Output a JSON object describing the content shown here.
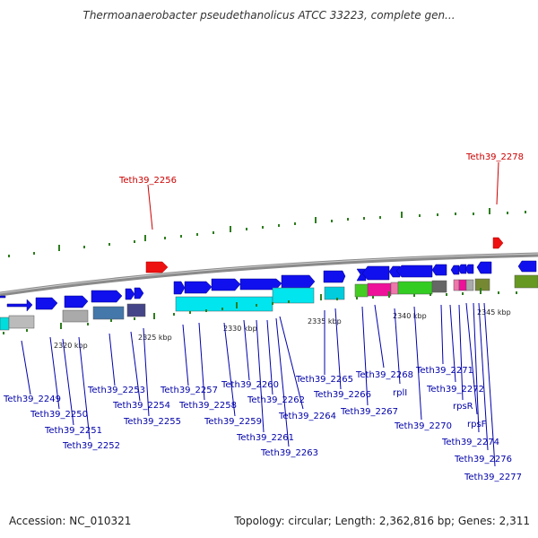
{
  "title": "Thermoanaerobacter pseudethanolicus ATCC 33223, complete gen...",
  "footer": {
    "accession_label": "Accession: NC_010321",
    "summary": "Topology: circular; Length: 2,362,816 bp; Genes: 2,311"
  },
  "colors": {
    "forward_gene": "#1010ee",
    "highlight_gene": "#ee1111",
    "backbone": "#8a8a8a",
    "tick": "#2e7d1e",
    "label_line": "#0000aa",
    "highlight_label": "#cc0000"
  },
  "kbp_labels": [
    "2320 kbp",
    "2325 kbp",
    "2330 kbp",
    "2335 kbp",
    "2340 kbp",
    "2345 kbp"
  ],
  "highlight_labels": [
    "Teth39_2256",
    "Teth39_2278"
  ],
  "gene_labels": [
    "Teth39_2249",
    "Teth39_2250",
    "Teth39_2251",
    "Teth39_2252",
    "Teth39_2253",
    "Teth39_2254",
    "Teth39_2255",
    "Teth39_2257",
    "Teth39_2258",
    "Teth39_2259",
    "Teth39_2260",
    "Teth39_2261",
    "Teth39_2262",
    "Teth39_2263",
    "Teth39_2264",
    "Teth39_2265",
    "Teth39_2266",
    "Teth39_2267",
    "Teth39_2268",
    "rplI",
    "Teth39_2270",
    "Teth39_2271",
    "Teth39_2272",
    "rpsR",
    "rpsF",
    "Teth39_2274",
    "Teth39_2276",
    "Teth39_2277"
  ]
}
